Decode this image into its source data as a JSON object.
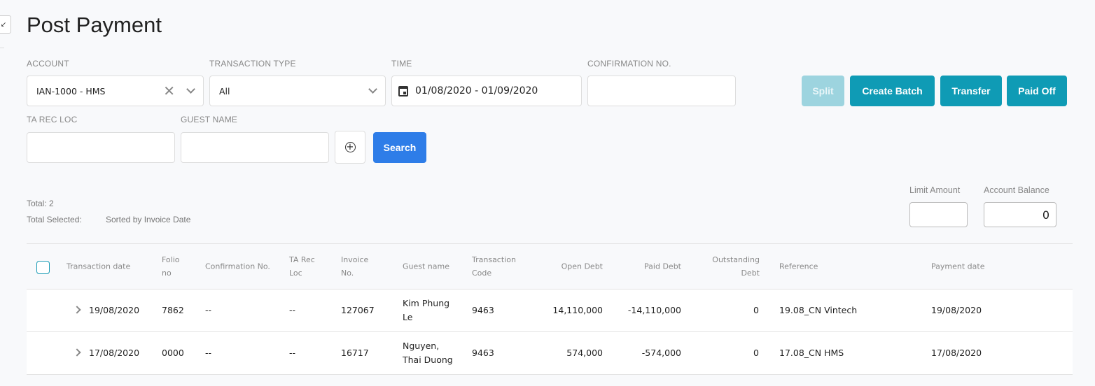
{
  "page": {
    "title": "Post Payment"
  },
  "filters": {
    "account": {
      "label": "ACCOUNT",
      "value": "IAN-1000 - HMS"
    },
    "transaction_type": {
      "label": "TRANSACTION TYPE",
      "value": "All"
    },
    "time": {
      "label": "TIME",
      "value": "01/08/2020 - 01/09/2020"
    },
    "confirmation": {
      "label": "CONFIRMATION NO.",
      "value": ""
    },
    "ta_rec_loc": {
      "label": "TA REC LOC",
      "value": ""
    },
    "guest_name": {
      "label": "GUEST NAME",
      "value": ""
    },
    "search_label": "Search"
  },
  "actions": {
    "split": "Split",
    "create_batch": "Create Batch",
    "transfer": "Transfer",
    "paid_off": "Paid Off"
  },
  "summary": {
    "total": "Total: 2",
    "total_selected": "Total Selected:",
    "sorted": "Sorted by Invoice Date",
    "limit_amount": {
      "label": "Limit Amount",
      "value": ""
    },
    "account_balance": {
      "label": "Account Balance",
      "value": "0"
    }
  },
  "colors": {
    "accent": "#0f9bb5",
    "search": "#2e7de8"
  },
  "table": {
    "headers": {
      "transaction_date": "Transaction date",
      "folio_no": "Folio no",
      "confirmation_no": "Confirmation No.",
      "ta_rec_loc": "TA Rec Loc",
      "invoice_no": "Invoice No.",
      "guest_name": "Guest name",
      "transaction_code": "Transaction Code",
      "open_debt": "Open Debt",
      "paid_debt": "Paid Debt",
      "outstanding_debt": "Outstanding Debt",
      "reference": "Reference",
      "payment_date": "Payment date"
    },
    "rows": [
      {
        "transaction_date": "19/08/2020",
        "folio_no": "7862",
        "confirmation_no": "--",
        "ta_rec_loc": "--",
        "invoice_no": "127067",
        "guest_name": "Kim Phung Le",
        "transaction_code": "9463",
        "open_debt": "14,110,000",
        "paid_debt": "-14,110,000",
        "outstanding_debt": "0",
        "reference": "19.08_CN Vintech",
        "payment_date": "19/08/2020"
      },
      {
        "transaction_date": "17/08/2020",
        "folio_no": "0000",
        "confirmation_no": "--",
        "ta_rec_loc": "--",
        "invoice_no": "16717",
        "guest_name": "Nguyen, Thai Duong",
        "transaction_code": "9463",
        "open_debt": "574,000",
        "paid_debt": "-574,000",
        "outstanding_debt": "0",
        "reference": "17.08_CN HMS",
        "payment_date": "17/08/2020"
      }
    ]
  }
}
